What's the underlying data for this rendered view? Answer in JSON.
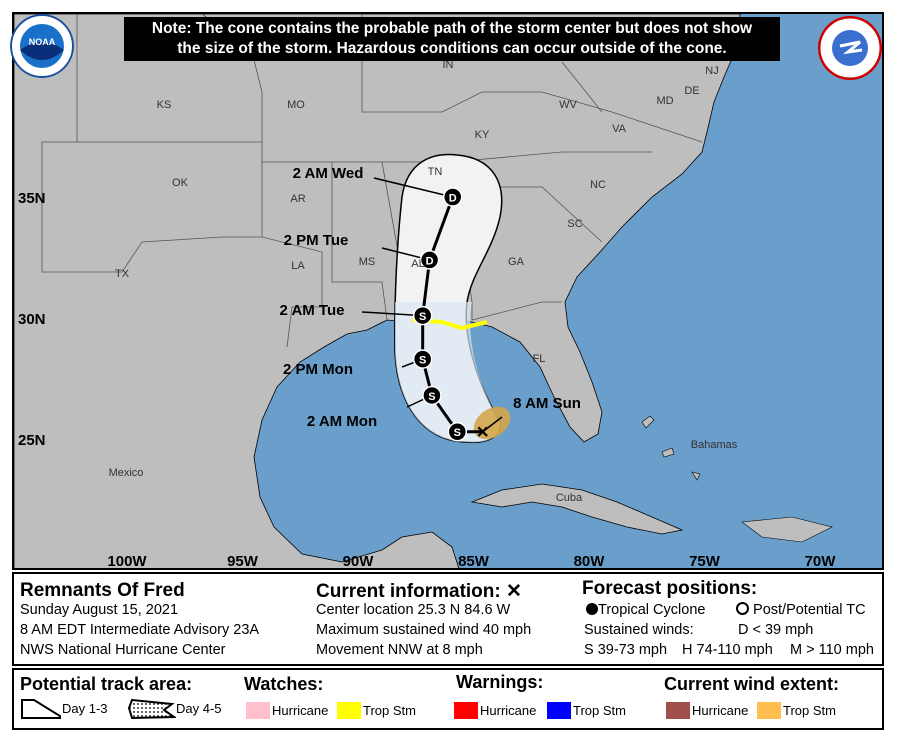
{
  "note": {
    "line1": "Note: The cone contains the probable path of the storm center but does not show",
    "line2": "the size of the storm. Hazardous conditions can occur outside of the cone."
  },
  "logos": {
    "left": "NOAA",
    "right": "NATIONAL WEATHER SERVICE"
  },
  "map": {
    "lat_labels": [
      "35N",
      "30N",
      "25N"
    ],
    "lon_labels": [
      "100W",
      "95W",
      "90W",
      "85W",
      "80W",
      "75W",
      "70W"
    ],
    "place_labels": [
      "KS",
      "MO",
      "IN",
      "KY",
      "WV",
      "VA",
      "OK",
      "AR",
      "TN",
      "NC",
      "SC",
      "TX",
      "LA",
      "MS",
      "AL",
      "GA",
      "FL",
      "Mexico",
      "Cuba",
      "Bahamas",
      "NJ",
      "DE",
      "MD"
    ],
    "track": [
      {
        "label": "8 AM Sun",
        "lat": 25.3,
        "lon": 84.6,
        "symbol": "X"
      },
      {
        "label": "",
        "lat": 25.3,
        "lon": 85.7,
        "symbol": "S"
      },
      {
        "label": "2 AM Mon",
        "lat": 26.8,
        "lon": 86.8,
        "symbol": "S"
      },
      {
        "label": "2 PM Mon",
        "lat": 28.3,
        "lon": 87.2,
        "symbol": "S"
      },
      {
        "label": "2 AM Tue",
        "lat": 30.1,
        "lon": 87.2,
        "symbol": "S"
      },
      {
        "label": "2 PM Tue",
        "lat": 32.4,
        "lon": 86.9,
        "symbol": "D"
      },
      {
        "label": "2 AM Wed",
        "lat": 35.0,
        "lon": 85.9,
        "symbol": "D"
      }
    ],
    "colors": {
      "ocean": "#6a9fcc",
      "land": "#bebebe",
      "cone": "#f2f2f2",
      "trop_storm_warning_coast": "#ffff00",
      "trop_storm_wind": "#d4a64a"
    }
  },
  "info": {
    "storm_name": "Remnants Of Fred",
    "date": "Sunday August 15, 2021",
    "advisory": "8 AM EDT Intermediate Advisory 23A",
    "center": "NWS National Hurricane Center",
    "current_title": "Current information:",
    "current_symbol": "✕",
    "location": "Center location 25.3 N 84.6 W",
    "wind": "Maximum sustained wind 40 mph",
    "movement": "Movement NNW at 8 mph",
    "forecast_title": "Forecast positions:",
    "tc_label": "Tropical Cyclone",
    "post_label": "Post/Potential TC",
    "sustained": "Sustained winds:",
    "d_def": "D < 39 mph",
    "s_def": "S 39-73 mph",
    "h_def": "H 74-110 mph",
    "m_def": "M > 110 mph"
  },
  "legend": {
    "track_title": "Potential track area:",
    "day13": "Day 1-3",
    "day45": "Day 4-5",
    "watches_title": "Watches:",
    "warnings_title": "Warnings:",
    "wind_title": "Current wind extent:",
    "hurricane": "Hurricane",
    "trop_stm": "Trop Stm",
    "colors": {
      "hurr_watch": "#ffc0cb",
      "ts_watch": "#ffff00",
      "hurr_warn": "#ff0000",
      "ts_warn": "#0000ff",
      "hurr_wind": "#a0504a",
      "ts_wind": "#ffbe50"
    }
  }
}
